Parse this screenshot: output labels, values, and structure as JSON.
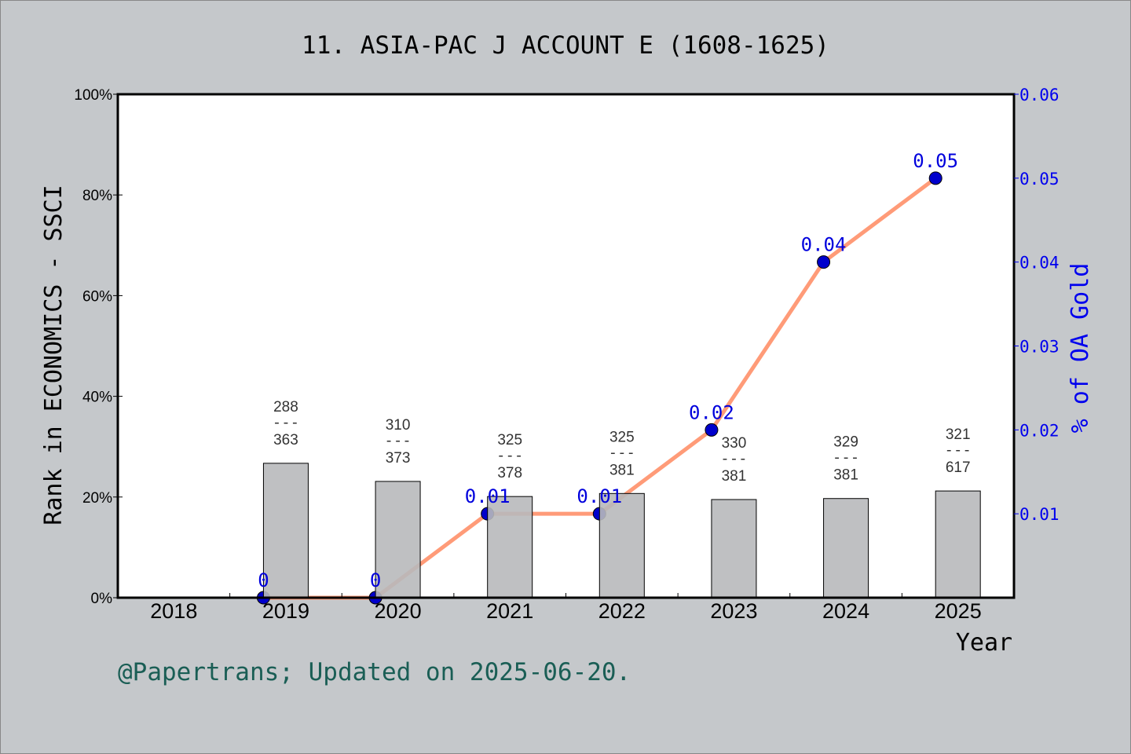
{
  "chart_data": {
    "type": "bar+line",
    "title": "11. ASIA-PAC J ACCOUNT E (1608-1625)",
    "xlabel": "Year",
    "ylabel": "Rank in ECONOMICS - SSCI",
    "y2label": "% of OA Gold",
    "categories": [
      "2018",
      "2019",
      "2020",
      "2021",
      "2022",
      "2023",
      "2024",
      "2025"
    ],
    "ylim": [
      0,
      100
    ],
    "y_ticks": [
      "0%",
      "20%",
      "40%",
      "60%",
      "80%",
      "100%"
    ],
    "y2lim": [
      0,
      0.06
    ],
    "y2_ticks": [
      "0.01",
      "0.02",
      "0.03",
      "0.04",
      "0.05",
      "0.06"
    ],
    "bars": {
      "values_percent": [
        null,
        26.7,
        23.1,
        20.1,
        20.7,
        19.5,
        19.7,
        21.2
      ],
      "labels_rank": [
        null,
        "288",
        "310",
        "325",
        "325",
        "330",
        "329",
        "321"
      ],
      "labels_total": [
        null,
        "363",
        "373",
        "378",
        "381",
        "381",
        "381",
        "617"
      ],
      "color": "#b8b9bb"
    },
    "line": {
      "values": [
        null,
        0,
        0,
        0.01,
        0.01,
        0.02,
        0.04,
        0.05
      ],
      "labels": [
        null,
        "0",
        "0",
        "0.01",
        "0.01",
        "0.02",
        "0.04",
        "0.05"
      ],
      "color": "#ff9b78",
      "marker_color": "#0000cc"
    },
    "grid": false
  },
  "footer": "@Papertrans; Updated on 2025-06-20."
}
